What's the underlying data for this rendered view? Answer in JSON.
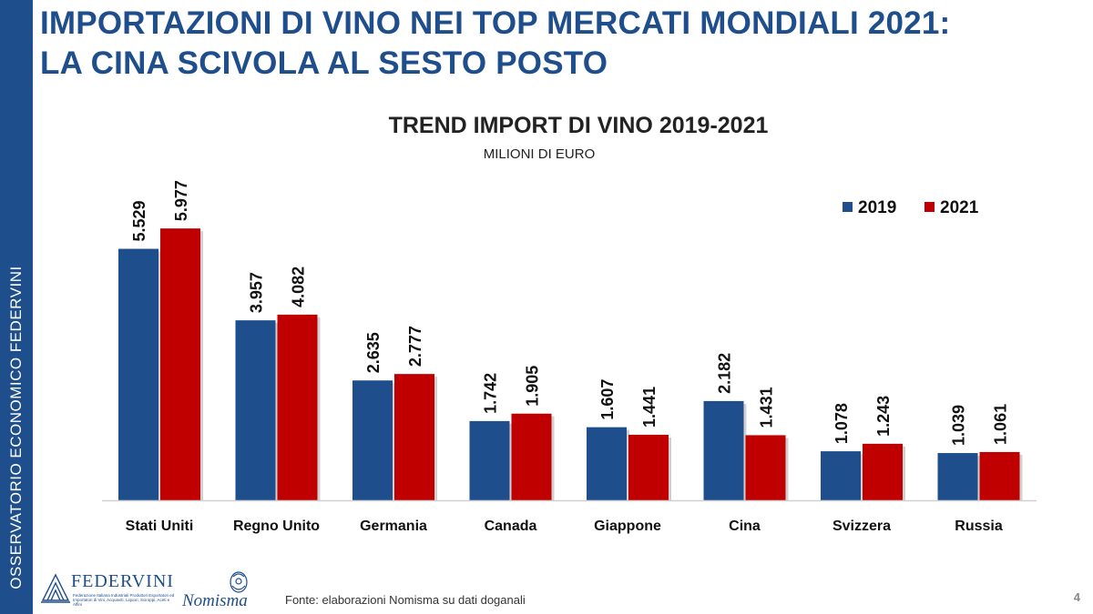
{
  "sidebar": {
    "text": "OSSERVATORIO ECONOMICO  FEDERVINI"
  },
  "header": {
    "title_line1": "IMPORTAZIONI DI VINO NEI TOP MERCATI MONDIALI 2021:",
    "title_line2": "LA CINA SCIVOLA AL SESTO POSTO"
  },
  "footer": {
    "source": "Fonte: elaborazioni Nomisma su dati doganali",
    "page_number": "4",
    "logo_federvini": "FEDERVINI",
    "logo_federvini_sub": "Federazione Italiana Industriali Produttori Esportatori ed Importatori di Vini, Acquaviti, Liquori, Sciroppi, Aceti e Affini",
    "logo_nomisma": "Nomisma"
  },
  "colors": {
    "brand_blue": "#1f4e8c",
    "series_2019": "#1f4e8c",
    "series_2021": "#c00000"
  },
  "chart_data": {
    "type": "bar",
    "title": "TREND IMPORT DI VINO 2019-2021",
    "subtitle": "MILIONI DI EURO",
    "categories": [
      "Stati Uniti",
      "Regno Unito",
      "Germania",
      "Canada",
      "Giappone",
      "Cina",
      "Svizzera",
      "Russia"
    ],
    "series": [
      {
        "name": "2019",
        "color": "#1f4e8c",
        "values": [
          5.529,
          3.957,
          2.635,
          1.742,
          1.607,
          2.182,
          1.078,
          1.039
        ],
        "labels": [
          "5.529",
          "3.957",
          "2.635",
          "1.742",
          "1.607",
          "2.182",
          "1.078",
          "1.039"
        ]
      },
      {
        "name": "2021",
        "color": "#c00000",
        "values": [
          5.977,
          4.082,
          2.777,
          1.905,
          1.441,
          1.431,
          1.243,
          1.061
        ],
        "labels": [
          "5.977",
          "4.082",
          "2.777",
          "1.905",
          "1.441",
          "1.431",
          "1.243",
          "1.061"
        ]
      }
    ],
    "ylim": [
      0,
      6
    ],
    "legend": "top-right",
    "grid": false
  }
}
